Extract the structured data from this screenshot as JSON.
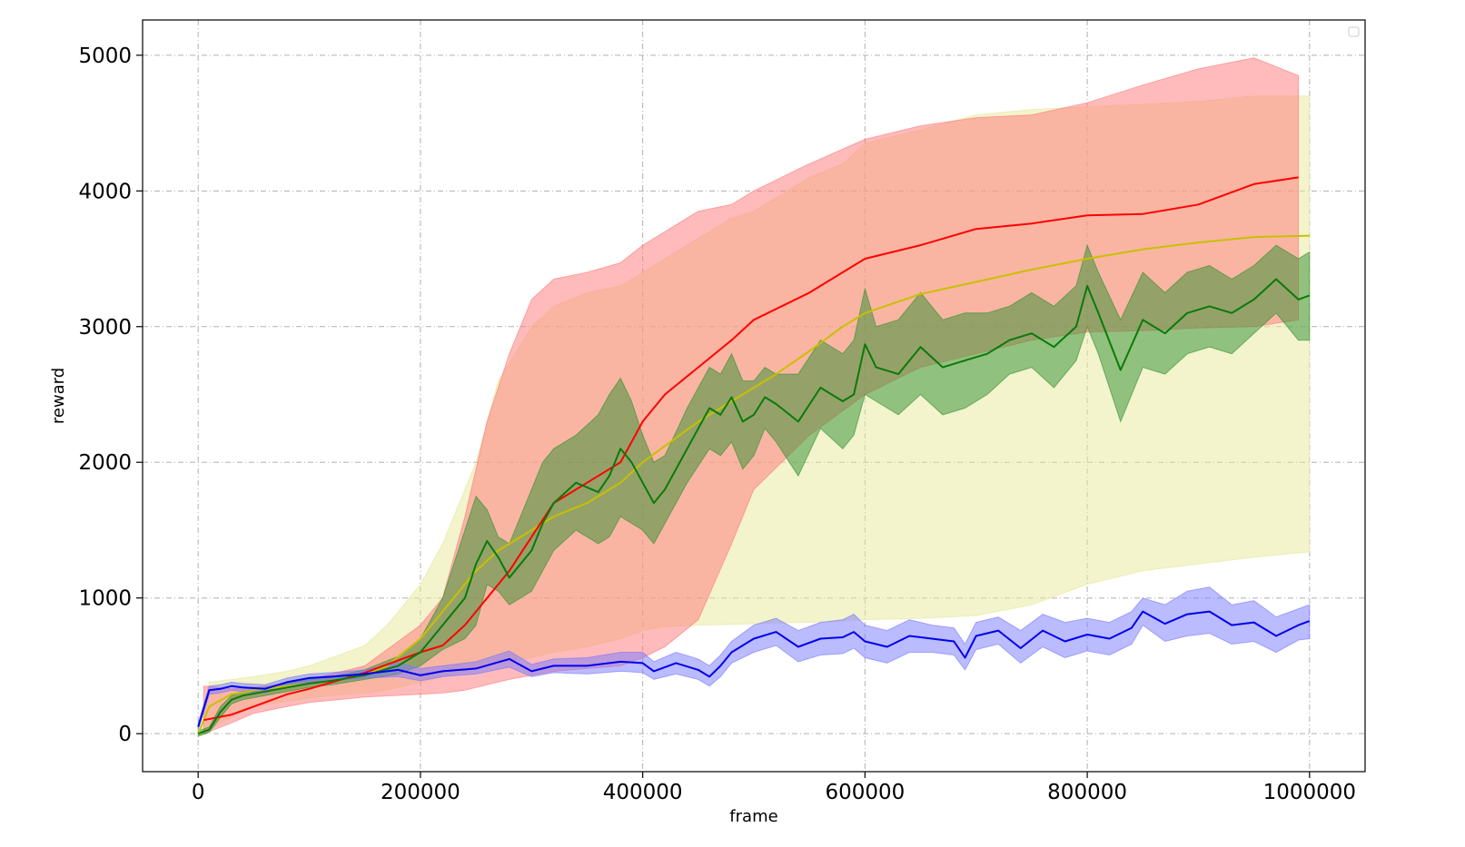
{
  "chart_data": {
    "type": "line",
    "title": "",
    "xlabel": "frame",
    "ylabel": "reward",
    "xlim": [
      -50000,
      1050000
    ],
    "ylim": [
      -280,
      5260
    ],
    "xticks": [
      0,
      200000,
      400000,
      600000,
      800000,
      1000000
    ],
    "yticks": [
      0,
      1000,
      2000,
      3000,
      4000,
      5000
    ],
    "grid": true,
    "legend": "top-right (empty)",
    "series": [
      {
        "color": "#e8e89a",
        "line_color": "#c8c000",
        "x": [
          0,
          10000,
          30000,
          50000,
          80000,
          100000,
          120000,
          150000,
          170000,
          200000,
          220000,
          250000,
          270000,
          300000,
          320000,
          350000,
          380000,
          400000,
          420000,
          450000,
          480000,
          500000,
          520000,
          550000,
          580000,
          600000,
          650000,
          700000,
          750000,
          800000,
          850000,
          900000,
          950000,
          1000000
        ],
        "mean": [
          0,
          200,
          290,
          320,
          350,
          370,
          390,
          430,
          500,
          700,
          900,
          1200,
          1350,
          1500,
          1600,
          1700,
          1850,
          2000,
          2120,
          2300,
          2450,
          2550,
          2650,
          2820,
          3000,
          3100,
          3240,
          3330,
          3420,
          3500,
          3570,
          3620,
          3660,
          3670
        ],
        "upper": [
          50,
          380,
          400,
          420,
          460,
          500,
          560,
          650,
          800,
          1100,
          1400,
          2000,
          2600,
          3000,
          3150,
          3250,
          3300,
          3400,
          3500,
          3650,
          3800,
          3850,
          3950,
          4100,
          4200,
          4350,
          4450,
          4560,
          4600,
          4620,
          4640,
          4660,
          4700,
          4700
        ],
        "lower": [
          -20,
          30,
          120,
          200,
          240,
          260,
          280,
          300,
          320,
          380,
          420,
          480,
          520,
          560,
          600,
          640,
          700,
          760,
          790,
          800,
          805,
          810,
          815,
          820,
          830,
          840,
          850,
          870,
          950,
          1100,
          1200,
          1250,
          1300,
          1340
        ]
      },
      {
        "color": "#ff7777",
        "line_color": "#ff0000",
        "x": [
          5000,
          30000,
          50000,
          80000,
          100000,
          150000,
          200000,
          220000,
          240000,
          260000,
          280000,
          300000,
          320000,
          350000,
          380000,
          400000,
          420000,
          450000,
          480000,
          500000,
          550000,
          600000,
          650000,
          700000,
          750000,
          800000,
          850000,
          900000,
          950000,
          990000
        ],
        "mean": [
          100,
          140,
          200,
          290,
          330,
          450,
          600,
          650,
          800,
          1000,
          1200,
          1450,
          1700,
          1850,
          2000,
          2300,
          2500,
          2700,
          2900,
          3050,
          3250,
          3500,
          3600,
          3720,
          3760,
          3820,
          3830,
          3900,
          4050,
          4100
        ],
        "upper": [
          350,
          330,
          340,
          370,
          400,
          500,
          800,
          1000,
          1600,
          2300,
          2800,
          3200,
          3350,
          3400,
          3470,
          3600,
          3700,
          3850,
          3900,
          4000,
          4200,
          4380,
          4480,
          4540,
          4560,
          4650,
          4780,
          4900,
          4980,
          4850
        ],
        "lower": [
          0,
          80,
          150,
          200,
          230,
          270,
          290,
          300,
          320,
          360,
          400,
          430,
          460,
          480,
          500,
          560,
          640,
          840,
          1400,
          1800,
          2200,
          2500,
          2700,
          2800,
          2900,
          2960,
          2970,
          2990,
          3000,
          3050
        ]
      },
      {
        "color": "#2f8f2f",
        "line_color": "#0a7a0a",
        "x": [
          0,
          10000,
          20000,
          30000,
          40000,
          60000,
          80000,
          100000,
          120000,
          150000,
          180000,
          200000,
          220000,
          240000,
          250000,
          260000,
          270000,
          280000,
          300000,
          310000,
          320000,
          340000,
          360000,
          370000,
          380000,
          390000,
          400000,
          410000,
          420000,
          440000,
          460000,
          470000,
          480000,
          490000,
          500000,
          510000,
          520000,
          540000,
          560000,
          580000,
          590000,
          600000,
          610000,
          630000,
          650000,
          670000,
          690000,
          710000,
          730000,
          750000,
          770000,
          790000,
          800000,
          810000,
          830000,
          850000,
          870000,
          890000,
          910000,
          930000,
          950000,
          970000,
          990000,
          1000000
        ],
        "mean": [
          0,
          30,
          160,
          250,
          280,
          310,
          340,
          370,
          390,
          430,
          500,
          600,
          800,
          1000,
          1250,
          1420,
          1300,
          1150,
          1350,
          1550,
          1700,
          1850,
          1780,
          1900,
          2100,
          2000,
          1850,
          1700,
          1800,
          2100,
          2400,
          2350,
          2480,
          2300,
          2350,
          2480,
          2430,
          2300,
          2550,
          2450,
          2500,
          2870,
          2700,
          2650,
          2850,
          2700,
          2750,
          2800,
          2900,
          2950,
          2850,
          3000,
          3300,
          3100,
          2680,
          3050,
          2950,
          3100,
          3150,
          3100,
          3200,
          3350,
          3200,
          3230
        ],
        "upper": [
          20,
          50,
          200,
          280,
          310,
          340,
          370,
          400,
          420,
          470,
          570,
          700,
          1000,
          1500,
          1750,
          1650,
          1450,
          1400,
          1800,
          2000,
          2100,
          2200,
          2350,
          2500,
          2620,
          2450,
          2200,
          2000,
          2050,
          2400,
          2700,
          2650,
          2800,
          2600,
          2600,
          2700,
          2650,
          2650,
          2900,
          2800,
          2900,
          3280,
          3000,
          3050,
          3250,
          3050,
          3100,
          3100,
          3150,
          3250,
          3150,
          3300,
          3600,
          3400,
          3050,
          3400,
          3250,
          3400,
          3450,
          3350,
          3450,
          3600,
          3500,
          3550
        ],
        "lower": [
          -20,
          10,
          120,
          220,
          250,
          280,
          310,
          340,
          360,
          400,
          440,
          500,
          620,
          700,
          800,
          1100,
          1050,
          950,
          1050,
          1200,
          1350,
          1500,
          1400,
          1450,
          1600,
          1550,
          1500,
          1400,
          1550,
          1850,
          2100,
          2050,
          2150,
          1950,
          2050,
          2250,
          2150,
          1900,
          2250,
          2100,
          2200,
          2500,
          2450,
          2350,
          2500,
          2350,
          2400,
          2500,
          2650,
          2700,
          2550,
          2750,
          3000,
          2800,
          2300,
          2700,
          2650,
          2800,
          2850,
          2800,
          2950,
          3100,
          2900,
          2900
        ]
      },
      {
        "color": "#7777ff",
        "line_color": "#0000ee",
        "x": [
          0,
          10000,
          20000,
          30000,
          40000,
          60000,
          80000,
          100000,
          120000,
          150000,
          180000,
          200000,
          220000,
          250000,
          280000,
          300000,
          320000,
          350000,
          380000,
          400000,
          410000,
          430000,
          450000,
          460000,
          470000,
          480000,
          500000,
          520000,
          540000,
          560000,
          580000,
          590000,
          600000,
          620000,
          640000,
          660000,
          680000,
          690000,
          700000,
          720000,
          740000,
          760000,
          780000,
          800000,
          820000,
          840000,
          850000,
          870000,
          890000,
          910000,
          930000,
          950000,
          970000,
          990000,
          1000000
        ],
        "mean": [
          50,
          320,
          330,
          350,
          340,
          330,
          380,
          410,
          420,
          440,
          470,
          430,
          460,
          480,
          550,
          460,
          500,
          500,
          530,
          520,
          460,
          520,
          470,
          420,
          500,
          600,
          700,
          750,
          640,
          700,
          710,
          750,
          680,
          640,
          720,
          700,
          680,
          560,
          720,
          760,
          630,
          760,
          680,
          730,
          700,
          780,
          900,
          810,
          880,
          900,
          800,
          820,
          720,
          800,
          830
        ],
        "upper": [
          80,
          350,
          360,
          380,
          370,
          360,
          410,
          440,
          450,
          470,
          520,
          480,
          500,
          530,
          610,
          510,
          550,
          560,
          600,
          600,
          530,
          600,
          550,
          500,
          580,
          680,
          800,
          850,
          760,
          820,
          840,
          880,
          800,
          760,
          840,
          800,
          780,
          660,
          820,
          860,
          760,
          880,
          820,
          850,
          820,
          900,
          1000,
          950,
          1050,
          1080,
          950,
          980,
          860,
          920,
          950
        ],
        "lower": [
          30,
          290,
          300,
          320,
          310,
          300,
          350,
          380,
          390,
          410,
          420,
          390,
          420,
          440,
          490,
          420,
          450,
          440,
          460,
          450,
          400,
          440,
          400,
          350,
          420,
          520,
          600,
          650,
          530,
          580,
          590,
          630,
          560,
          520,
          600,
          600,
          580,
          470,
          620,
          660,
          520,
          640,
          560,
          610,
          580,
          660,
          800,
          680,
          720,
          740,
          660,
          680,
          600,
          690,
          700
        ]
      }
    ]
  }
}
